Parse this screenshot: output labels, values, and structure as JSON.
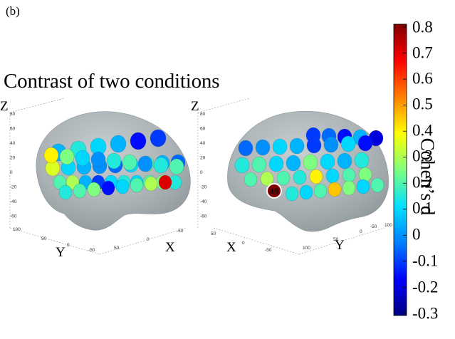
{
  "panel_label": "(b)",
  "title": "Contrast of two conditions",
  "colorbar": {
    "label": "Cohen’s d",
    "min": -0.3,
    "max": 0.8,
    "ticks": [
      "0.8",
      "0.7",
      "0.6",
      "0.5",
      "0.4",
      "0.3",
      "0.2",
      "0.1",
      "0",
      "-0.1",
      "-0.2",
      "-0.3"
    ],
    "colormap": [
      "#00007f",
      "#0000ff",
      "#0080ff",
      "#00e0ff",
      "#7fff7f",
      "#ffff00",
      "#ff8000",
      "#ff0000",
      "#7f0000"
    ]
  },
  "views": [
    {
      "name": "left-lateral",
      "axis_z": "Z",
      "axis_y": "Y",
      "axis_x": "X",
      "z_ticks": [
        "80",
        "60",
        "40",
        "20",
        "0",
        "-20",
        "-40",
        "-60"
      ],
      "y_ticks": [
        "100",
        "50",
        "0",
        "-50"
      ],
      "x_ticks": [
        "50",
        "0",
        "-50"
      ],
      "channel_values": [
        0.05,
        0.15,
        0.1,
        0.05,
        -0.15,
        -0.1,
        0.35,
        0.1,
        0.05,
        0.0,
        -0.05,
        0.1,
        0.2,
        0.05,
        -0.05,
        0.4,
        0.25,
        0.1,
        0.0,
        0.15,
        0.2,
        0.0,
        0.15,
        0.2,
        0.2,
        0.3,
        0.05,
        -0.1,
        0.1,
        0.15,
        0.1,
        0.2,
        0.25,
        0.15,
        0.15,
        0.2,
        0.25,
        -0.15,
        0.1,
        0.2,
        0.3,
        0.7
      ]
    },
    {
      "name": "right-lateral",
      "axis_z": "Z",
      "axis_y": "Y",
      "axis_x": "X",
      "z_ticks": [
        "80",
        "60",
        "40",
        "20",
        "0",
        "-20",
        "-40",
        "-60"
      ],
      "y_ticks": [
        "100",
        "50",
        "0",
        "-50"
      ],
      "x_ticks": [
        "50",
        "0",
        "-50",
        "100"
      ],
      "highlight_channel": "49",
      "channel_values": [
        -0.1,
        -0.05,
        -0.15,
        0.05,
        -0.2,
        -0.05,
        0.0,
        0.1,
        0.05,
        -0.1,
        0.0,
        0.1,
        -0.15,
        0.15,
        0.2,
        0.1,
        0.05,
        0.25,
        0.1,
        0.05,
        0.15,
        0.2,
        0.3,
        0.2,
        0.15,
        0.4,
        0.1,
        0.2,
        0.25,
        0.15,
        0.1,
        0.2,
        0.45,
        0.25,
        0.1,
        0.2
      ]
    }
  ]
}
